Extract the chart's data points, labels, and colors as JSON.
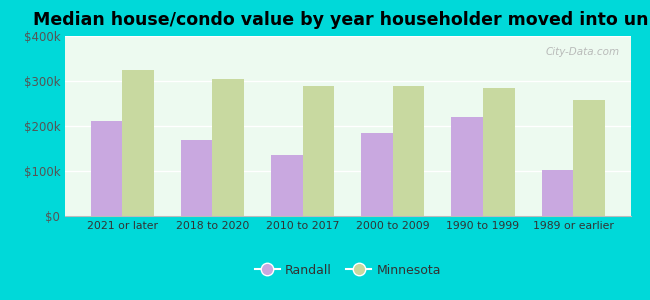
{
  "title": "Median house/condo value by year householder moved into unit",
  "categories": [
    "2021 or later",
    "2018 to 2020",
    "2010 to 2017",
    "2000 to 2009",
    "1990 to 1999",
    "1989 or earlier"
  ],
  "randall_values": [
    210000,
    170000,
    135000,
    185000,
    220000,
    103000
  ],
  "minnesota_values": [
    325000,
    305000,
    290000,
    288000,
    285000,
    257000
  ],
  "randall_color": "#c9a8e0",
  "minnesota_color": "#c8d9a0",
  "background_color": "#edfaf0",
  "outer_background": "#00d9d9",
  "ylim": [
    0,
    400000
  ],
  "yticks": [
    0,
    100000,
    200000,
    300000,
    400000
  ],
  "ytick_labels": [
    "$0",
    "$100k",
    "$200k",
    "$300k",
    "$400k"
  ],
  "legend_randall": "Randall",
  "legend_minnesota": "Minnesota",
  "bar_width": 0.35,
  "title_fontsize": 12.5,
  "watermark": "City-Data.com"
}
